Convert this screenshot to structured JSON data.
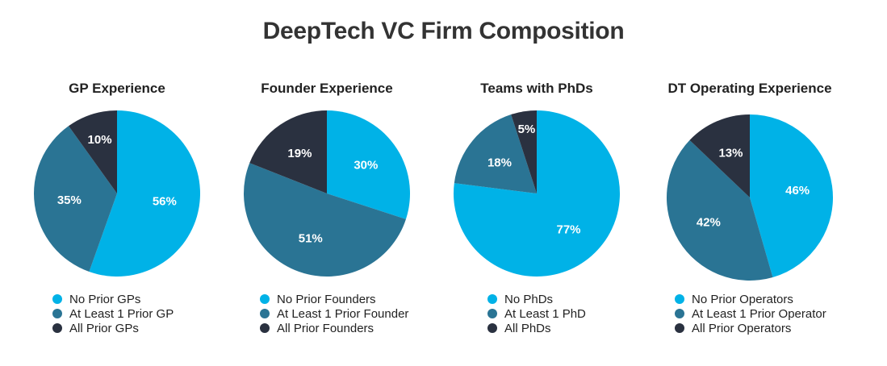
{
  "title": "DeepTech VC Firm Composition",
  "colors": {
    "primary": "#00B2E7",
    "secondary": "#2A7494",
    "tertiary": "#2A3140"
  },
  "chart_data": [
    {
      "type": "pie",
      "title": "GP Experience",
      "categories": [
        "No Prior GPs",
        "At Least 1 Prior GP",
        "All Prior GPs"
      ],
      "values": [
        56,
        35,
        10
      ],
      "labels": [
        "56%",
        "35%",
        "10%"
      ],
      "legend": "bottom"
    },
    {
      "type": "pie",
      "title": "Founder Experience",
      "categories": [
        "No Prior Founders",
        "At Least 1 Prior Founder",
        "All Prior Founders"
      ],
      "values": [
        30,
        51,
        19
      ],
      "labels": [
        "30%",
        "51%",
        "19%"
      ],
      "legend": "bottom"
    },
    {
      "type": "pie",
      "title": "Teams with PhDs",
      "categories": [
        "No PhDs",
        "At Least 1 PhD",
        "All PhDs"
      ],
      "values": [
        77,
        18,
        5
      ],
      "labels": [
        "77%",
        "18%",
        "5%"
      ],
      "legend": "bottom"
    },
    {
      "type": "pie",
      "title": "DT Operating Experience",
      "categories": [
        "No Prior Operators",
        "At Least 1 Prior Operator",
        "All Prior Operators"
      ],
      "values": [
        46,
        42,
        13
      ],
      "labels": [
        "46%",
        "42%",
        "13%"
      ],
      "legend": "bottom"
    }
  ]
}
